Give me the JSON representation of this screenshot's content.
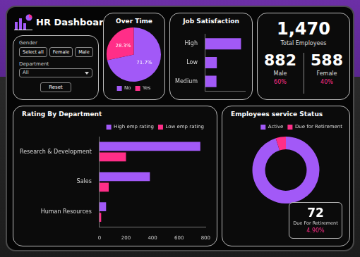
{
  "header": {
    "title": "HR Dashboard"
  },
  "filters": {
    "gender_label": "Gender",
    "gender_options": [
      "Select all",
      "Female",
      "Male"
    ],
    "department_label": "Department",
    "department_value": "All",
    "reset": "Reset"
  },
  "kpi": {
    "total": "1,470",
    "total_label": "Total Employees",
    "groups": [
      {
        "value": "882",
        "label": "Male",
        "share": "60%"
      },
      {
        "value": "588",
        "label": "Female",
        "share": "40%"
      }
    ]
  },
  "retirement_card": {
    "value": "72",
    "label": "Due For Retirement",
    "share": "4.90%"
  },
  "chart_data": [
    {
      "type": "pie",
      "title": "Over Time",
      "categories": [
        "No",
        "Yes"
      ],
      "values": [
        71.7,
        28.3
      ],
      "value_labels": [
        "71.7%",
        "28.3%"
      ],
      "colors": [
        "#a259f7",
        "#ff2e88"
      ],
      "data_labels": true,
      "legend": "bottom"
    },
    {
      "type": "bar",
      "title": "Job Satisfaction",
      "orientation": "horizontal",
      "categories": [
        "High",
        "Low",
        "Medium"
      ],
      "values": [
        901,
        289,
        280
      ],
      "color": "#a259f7",
      "xlim": [
        0,
        1000
      ],
      "grid": false,
      "tick_labels": "y"
    },
    {
      "type": "bar",
      "title": "Rating By Department",
      "orientation": "horizontal",
      "categories": [
        "Research & Development",
        "Sales",
        "Human Resources"
      ],
      "series": [
        {
          "name": "High emp rating",
          "color": "#a259f7",
          "values": [
            760,
            380,
            50
          ]
        },
        {
          "name": "Low emp rating",
          "color": "#ff2e88",
          "values": [
            200,
            70,
            13
          ]
        }
      ],
      "xlim": [
        0,
        800
      ],
      "xticks": [
        0,
        200,
        400,
        600,
        800
      ],
      "grid": false,
      "legend": "top-right"
    },
    {
      "type": "doughnut",
      "title": "Employees service Status",
      "categories": [
        "Active",
        "Due for Retirement"
      ],
      "values": [
        1398,
        72
      ],
      "colors": [
        "#a259f7",
        "#ff2e88"
      ],
      "legend": "top-right"
    }
  ]
}
